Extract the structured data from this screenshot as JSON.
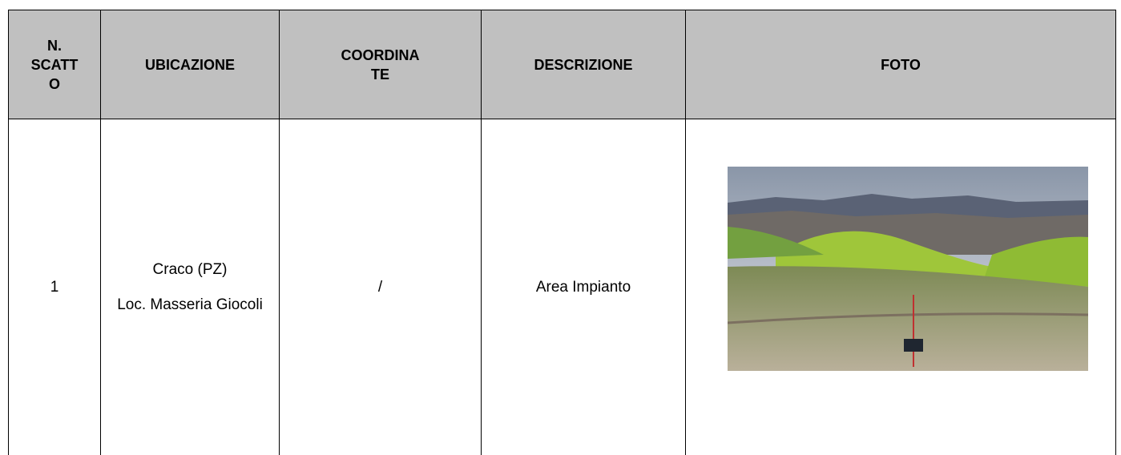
{
  "table": {
    "header": [
      [
        "N.",
        "SCATT",
        "O"
      ],
      [
        "UBICAZIONE"
      ],
      [
        "COORDINA",
        "TE"
      ],
      [
        "DESCRIZIONE"
      ],
      [
        "FOTO"
      ]
    ],
    "rows": [
      [
        [
          "1"
        ],
        [
          "Craco (PZ)",
          "Loc. Masseria Giocoli"
        ],
        [
          "/"
        ],
        [
          "Area Impianto"
        ]
      ]
    ]
  }
}
